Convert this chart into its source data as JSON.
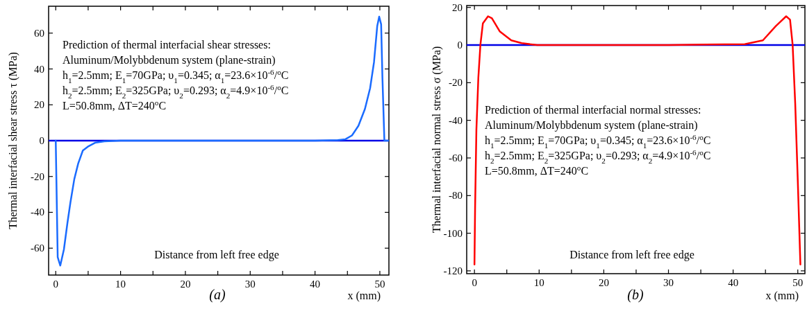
{
  "chart_data": [
    {
      "type": "line",
      "title": "(a)",
      "xlabel": "x (mm)",
      "ylabel": "Thermal interfacial shear stress  τ (MPa)",
      "xlim": [
        -1.1,
        51.4
      ],
      "ylim": [
        -75,
        75
      ],
      "xticks": [
        0,
        {
          "value": 5,
          "label": null
        },
        10,
        {
          "value": 15,
          "label": null
        },
        20,
        {
          "value": 25,
          "label": null
        },
        30,
        {
          "value": 35,
          "label": null
        },
        40,
        {
          "value": 45,
          "label": null
        },
        50
      ],
      "yticks": [
        -60,
        -40,
        -20,
        0,
        20,
        40,
        60
      ],
      "ref_lines": [
        {
          "axis": "y",
          "value": 0,
          "color": "#0000e6"
        }
      ],
      "annotations": [
        "Prediction of thermal interfacial shear stresses:",
        "Aluminum/Molybbdenum system (plane-strain)",
        "h$_{1}$=2.5mm; E$_{1}$=70GPa; υ$_{1}$=0.345; α$_{1}$=23.6×10$^{-6}$/$^{o}$C",
        "h$_{2}$=2.5mm; E$_{2}$=325GPa; υ$_{2}$=0.293; α$_{2}$=4.9×10$^{-6}$/$^{o}$C",
        "L=50.8mm, ΔT=240$^{o}$C",
        "Distance from left free edge"
      ],
      "series": [
        {
          "color": "#1a6bff",
          "x": [
            0,
            0.3,
            0.7,
            1.26,
            1.8,
            2.26,
            2.86,
            3.46,
            4.18,
            5.06,
            6.06,
            7.5,
            10,
            20,
            30,
            40,
            43.5,
            44.7,
            45.7,
            46.7,
            47.7,
            48.5,
            49.1,
            49.6,
            49.9,
            50.2,
            50.4,
            50.7,
            51.3
          ],
          "values": [
            0,
            -65,
            -69.7,
            -60.7,
            -46,
            -34.6,
            -21.5,
            -12.8,
            -5.5,
            -3.1,
            -1.2,
            -0.4,
            0,
            0,
            0,
            0,
            0.3,
            0.8,
            2.9,
            8.3,
            17.7,
            29.3,
            43.8,
            64,
            69.2,
            64.9,
            35,
            0,
            0
          ]
        }
      ]
    },
    {
      "type": "line",
      "title": "(b)",
      "xlabel": "x (mm)",
      "ylabel": "Thermal interfacial normal stress σ (MPa)",
      "xlim": [
        -1.2,
        51.1
      ],
      "ylim": [
        -121.5,
        21
      ],
      "xticks": [
        0,
        {
          "value": 5,
          "label": null
        },
        10,
        {
          "value": 15,
          "label": null
        },
        20,
        {
          "value": 25,
          "label": null
        },
        30,
        {
          "value": 35,
          "label": null
        },
        40,
        {
          "value": 45,
          "label": null
        },
        50
      ],
      "yticks": [
        -120,
        -100,
        -80,
        -60,
        -40,
        -20,
        0,
        20
      ],
      "ref_lines": [
        {
          "axis": "y",
          "value": 0,
          "color": "#0000e6"
        }
      ],
      "annotations": [
        "Prediction of thermal interfacial normal stresses:",
        "Aluminum/Molybbdenum system (plane-strain)",
        "h$_{1}$=2.5mm; E$_{1}$=70GPa; υ$_{1}$=0.345; α$_{1}$=23.6×10$^{-6}$/$^{o}$C",
        "h$_{2}$=2.5mm; E$_{2}$=325GPa; υ$_{2}$=0.293; α$_{2}$=4.9×10$^{-6}$/$^{o}$C",
        "L=50.8mm, ΔT=240$^{o}$C",
        "Distance from left free edge"
      ],
      "series": [
        {
          "color": "#ff0000",
          "x": [
            0,
            0.1,
            0.3,
            0.6,
            0.92,
            1.3,
            2.1,
            2.7,
            3.9,
            5.7,
            7.3,
            9.7,
            20,
            30,
            41.8,
            44.6,
            46.6,
            48.2,
            48.8,
            49.2,
            49.6,
            50.0,
            50.4
          ],
          "values": [
            -116.6,
            -86.1,
            -44.9,
            -17.4,
            0.2,
            11.5,
            15.3,
            14.2,
            7.3,
            2.5,
            1.0,
            0,
            0,
            0,
            0.5,
            2.5,
            10.1,
            15.3,
            13.5,
            0.2,
            -31.1,
            -72.3,
            -116.6
          ]
        }
      ]
    }
  ]
}
